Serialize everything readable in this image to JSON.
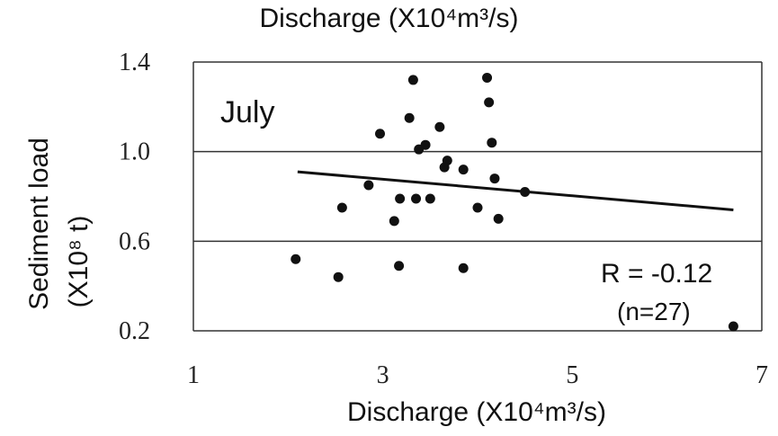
{
  "chart_data": {
    "type": "scatter",
    "title": "Discharge (X10⁴m³/s)",
    "xlabel": "Discharge (X10⁴m³/s)",
    "ylabel_line1": "Sediment load",
    "ylabel_line2": "(X10⁸ t)",
    "xlim": [
      1,
      7
    ],
    "ylim": [
      0.2,
      1.4
    ],
    "xticks": [
      "1",
      "3",
      "5",
      "7"
    ],
    "yticks": [
      "0.2",
      "0.6",
      "1.0",
      "1.4"
    ],
    "grid": "horizontal",
    "panel_label": "July",
    "stat_label": "R = -0.12",
    "n_label": "(n=27)",
    "points": [
      {
        "x": 3.32,
        "y": 1.32
      },
      {
        "x": 4.1,
        "y": 1.33
      },
      {
        "x": 4.12,
        "y": 1.22
      },
      {
        "x": 3.28,
        "y": 1.15
      },
      {
        "x": 2.97,
        "y": 1.08
      },
      {
        "x": 3.6,
        "y": 1.11
      },
      {
        "x": 4.15,
        "y": 1.04
      },
      {
        "x": 3.45,
        "y": 1.03
      },
      {
        "x": 3.38,
        "y": 1.01
      },
      {
        "x": 3.68,
        "y": 0.96
      },
      {
        "x": 3.65,
        "y": 0.93
      },
      {
        "x": 3.85,
        "y": 0.92
      },
      {
        "x": 4.18,
        "y": 0.88
      },
      {
        "x": 2.85,
        "y": 0.85
      },
      {
        "x": 4.5,
        "y": 0.82
      },
      {
        "x": 3.18,
        "y": 0.79
      },
      {
        "x": 3.35,
        "y": 0.79
      },
      {
        "x": 3.5,
        "y": 0.79
      },
      {
        "x": 2.57,
        "y": 0.75
      },
      {
        "x": 4.0,
        "y": 0.75
      },
      {
        "x": 3.12,
        "y": 0.69
      },
      {
        "x": 4.22,
        "y": 0.7
      },
      {
        "x": 2.08,
        "y": 0.52
      },
      {
        "x": 3.17,
        "y": 0.49
      },
      {
        "x": 3.85,
        "y": 0.48
      },
      {
        "x": 2.53,
        "y": 0.44
      },
      {
        "x": 6.7,
        "y": 0.22
      }
    ],
    "trendline": {
      "x": [
        2.1,
        6.7
      ],
      "y": [
        0.91,
        0.74
      ]
    }
  },
  "colors": {
    "marker": "#111111",
    "line": "#111111",
    "grid": "#333333"
  }
}
